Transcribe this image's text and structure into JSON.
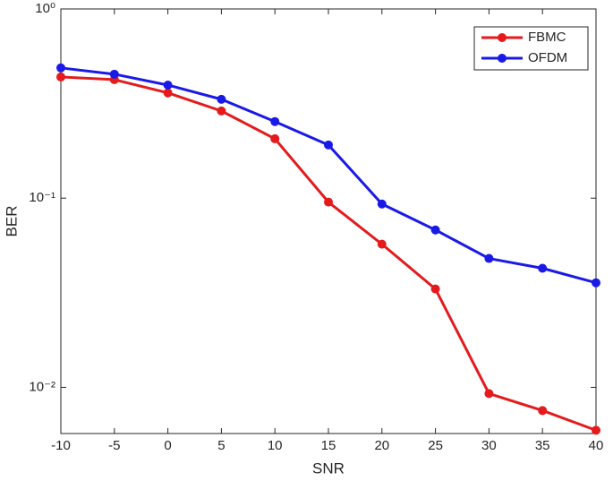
{
  "chart_data": {
    "type": "line",
    "xlabel": "SNR",
    "ylabel": "BER",
    "x": [
      -10,
      -5,
      0,
      5,
      10,
      15,
      20,
      25,
      30,
      35,
      40
    ],
    "series": [
      {
        "name": "FBMC",
        "color": "#e41a1c",
        "values": [
          0.437,
          0.423,
          0.36,
          0.289,
          0.206,
          0.0953,
          0.0571,
          0.0331,
          0.00927,
          0.00754,
          0.00593
        ]
      },
      {
        "name": "OFDM",
        "color": "#1a1ae6",
        "values": [
          0.488,
          0.452,
          0.396,
          0.333,
          0.254,
          0.191,
          0.0931,
          0.0679,
          0.048,
          0.0426,
          0.0357
        ]
      }
    ],
    "xlim": [
      -10,
      40
    ],
    "xticks": [
      -10,
      -5,
      0,
      5,
      10,
      15,
      20,
      25,
      30,
      35,
      40
    ],
    "ylim": [
      0.0057,
      1
    ],
    "yticks": [
      {
        "value": 0.01,
        "label": "10⁻²"
      },
      {
        "value": 0.1,
        "label": "10⁻¹"
      },
      {
        "value": 1,
        "label": "10⁰"
      }
    ],
    "yscale": "log",
    "legend": "northeast"
  }
}
